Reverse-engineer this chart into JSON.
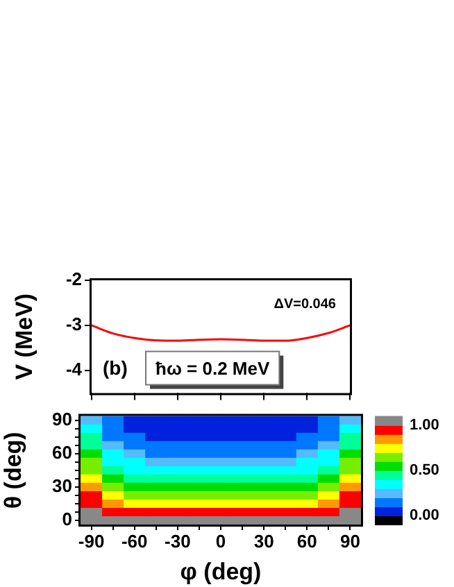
{
  "chart_data": [
    {
      "type": "line",
      "ylabel": "V (MeV)",
      "x": [
        -90,
        -75,
        -60,
        -45,
        -30,
        -15,
        0,
        15,
        30,
        45,
        60,
        75,
        90
      ],
      "series": [
        {
          "color": "#ff0000",
          "values": [
            -3.0,
            -3.18,
            -3.28,
            -3.33,
            -3.34,
            -3.32,
            -3.31,
            -3.32,
            -3.34,
            -3.34,
            -3.28,
            -3.17,
            -3.0
          ]
        }
      ],
      "xlim": [
        -90,
        90
      ],
      "xticks": [
        -90,
        -60,
        -30,
        0,
        30,
        60,
        90
      ],
      "ylim": [
        -4.5,
        -2
      ],
      "yticks": [
        -4,
        -3,
        -2
      ],
      "tick_labels": "y",
      "legend": false,
      "marker": "none",
      "annotations": [
        "ΔV=0.046",
        "(b)",
        "ħω = 0.2 MeV"
      ]
    },
    {
      "type": "heatmap",
      "xlabel": "φ (deg)",
      "ylabel": "θ (deg)",
      "categories": [
        "-90",
        null,
        "-60",
        null,
        "-30",
        null,
        "0",
        null,
        "30",
        null,
        "60",
        null,
        "90"
      ],
      "y_categories": [
        "90",
        null,
        null,
        null,
        "60",
        null,
        null,
        null,
        "30",
        null,
        null,
        null,
        "0"
      ],
      "cells": [
        [
          0.28,
          0.12,
          0.07,
          0.05,
          0.05,
          0.05,
          0.05,
          0.05,
          0.05,
          0.05,
          0.07,
          0.12,
          0.28
        ],
        [
          0.35,
          0.14,
          0.08,
          0.06,
          0.06,
          0.06,
          0.06,
          0.06,
          0.06,
          0.06,
          0.08,
          0.14,
          0.35
        ],
        [
          0.42,
          0.18,
          0.11,
          0.09,
          0.08,
          0.08,
          0.08,
          0.08,
          0.08,
          0.09,
          0.11,
          0.18,
          0.42
        ],
        [
          0.5,
          0.24,
          0.16,
          0.13,
          0.12,
          0.12,
          0.12,
          0.12,
          0.12,
          0.13,
          0.16,
          0.24,
          0.5
        ],
        [
          0.58,
          0.3,
          0.22,
          0.19,
          0.18,
          0.18,
          0.18,
          0.18,
          0.18,
          0.19,
          0.22,
          0.3,
          0.58
        ],
        [
          0.64,
          0.38,
          0.3,
          0.28,
          0.27,
          0.27,
          0.27,
          0.27,
          0.27,
          0.28,
          0.3,
          0.38,
          0.64
        ],
        [
          0.7,
          0.46,
          0.39,
          0.37,
          0.36,
          0.36,
          0.36,
          0.36,
          0.36,
          0.37,
          0.39,
          0.46,
          0.7
        ],
        [
          0.76,
          0.54,
          0.48,
          0.46,
          0.45,
          0.45,
          0.45,
          0.45,
          0.45,
          0.46,
          0.48,
          0.54,
          0.76
        ],
        [
          0.83,
          0.62,
          0.57,
          0.55,
          0.54,
          0.54,
          0.54,
          0.54,
          0.54,
          0.55,
          0.57,
          0.62,
          0.83
        ],
        [
          0.9,
          0.72,
          0.67,
          0.66,
          0.65,
          0.65,
          0.65,
          0.65,
          0.65,
          0.66,
          0.67,
          0.72,
          0.9
        ],
        [
          0.97,
          0.82,
          0.78,
          0.77,
          0.76,
          0.76,
          0.76,
          0.76,
          0.76,
          0.77,
          0.78,
          0.82,
          0.97
        ],
        [
          1.05,
          0.95,
          0.92,
          0.91,
          0.9,
          0.9,
          0.9,
          0.9,
          0.9,
          0.91,
          0.92,
          0.95,
          1.05
        ],
        [
          1.08,
          1.07,
          1.06,
          1.05,
          1.05,
          1.05,
          1.05,
          1.05,
          1.05,
          1.05,
          1.06,
          1.07,
          1.08
        ]
      ],
      "clim": [
        -0.1,
        1.1
      ],
      "colors": [
        "#000000",
        "#0022dd",
        "#0077ff",
        "#55bbff",
        "#00ffff",
        "#00ff99",
        "#00dd00",
        "#77ee00",
        "#ffff00",
        "#ff9900",
        "#ff0000",
        "#888888"
      ],
      "cticks": [
        {
          "value": 0,
          "label": "0.00"
        },
        {
          "value": 0.5,
          "label": "0.50"
        },
        {
          "value": 1,
          "label": "1.00"
        }
      ]
    }
  ]
}
